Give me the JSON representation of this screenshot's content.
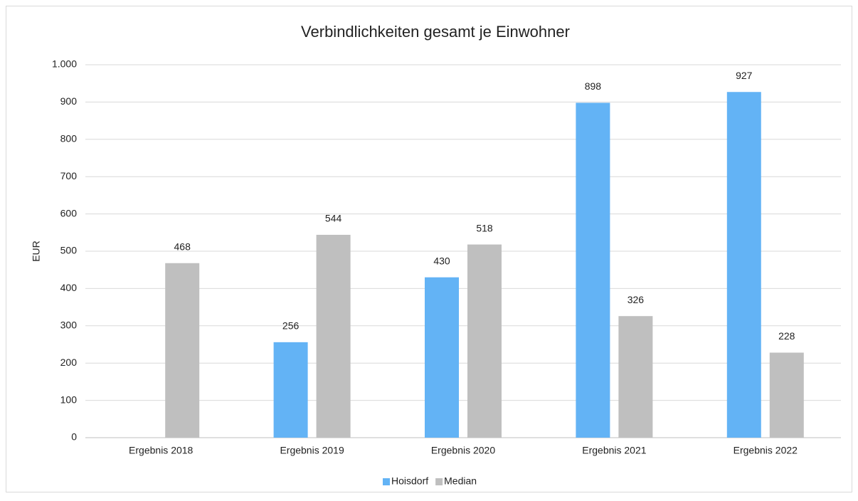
{
  "chart_data": {
    "type": "bar",
    "title": "Verbindlichkeiten gesamt je Einwohner",
    "y_label": "EUR",
    "categories": [
      "Ergebnis 2018",
      "Ergebnis 2019",
      "Ergebnis 2020",
      "Ergebnis 2021",
      "Ergebnis 2022"
    ],
    "series": [
      {
        "name": "Hoisdorf",
        "color": "#63b3f5",
        "values": [
          null,
          256,
          430,
          898,
          927
        ]
      },
      {
        "name": "Median",
        "color": "#bfbfbf",
        "values": [
          468,
          544,
          518,
          326,
          228
        ]
      }
    ],
    "ylim": [
      0,
      1000
    ],
    "yticks": [
      0,
      100,
      200,
      300,
      400,
      500,
      600,
      700,
      800,
      900,
      {
        "value": 1000,
        "label": "1.000"
      }
    ],
    "grid": true,
    "legend": "bottom"
  }
}
